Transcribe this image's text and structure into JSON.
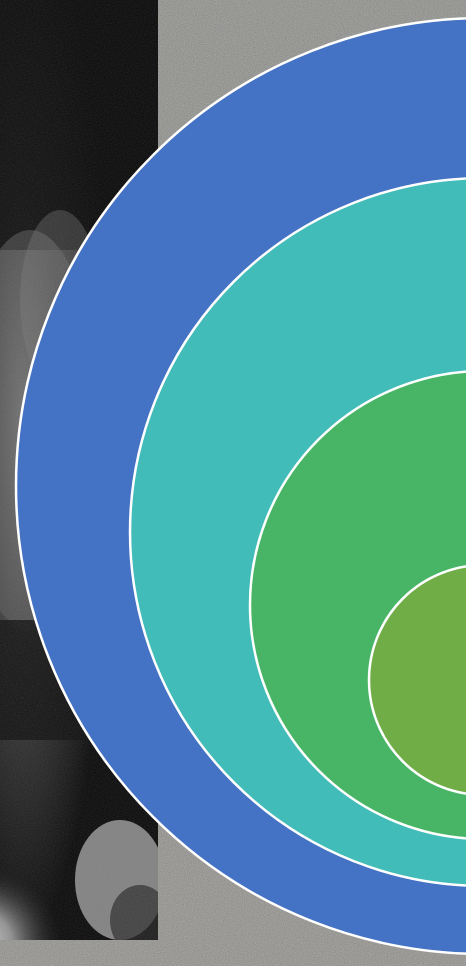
{
  "slide": {
    "background_texture_colors": [
      "#6f6f6c",
      "#8a8a86",
      "#9a8e84"
    ],
    "photo": {
      "subject": "black-and-white-photo",
      "tones": [
        "#050505",
        "#3c3c3c",
        "#8c8c8c",
        "#cfcfcf"
      ]
    },
    "nested_circles": [
      {
        "name": "outer-ring",
        "color": "#4472C4"
      },
      {
        "name": "second-ring",
        "color": "#42BCB8"
      },
      {
        "name": "third-ring",
        "color": "#47B565"
      },
      {
        "name": "inner-ring",
        "color": "#70AD47"
      }
    ],
    "ring_stroke_color": "#FFFFFF"
  }
}
